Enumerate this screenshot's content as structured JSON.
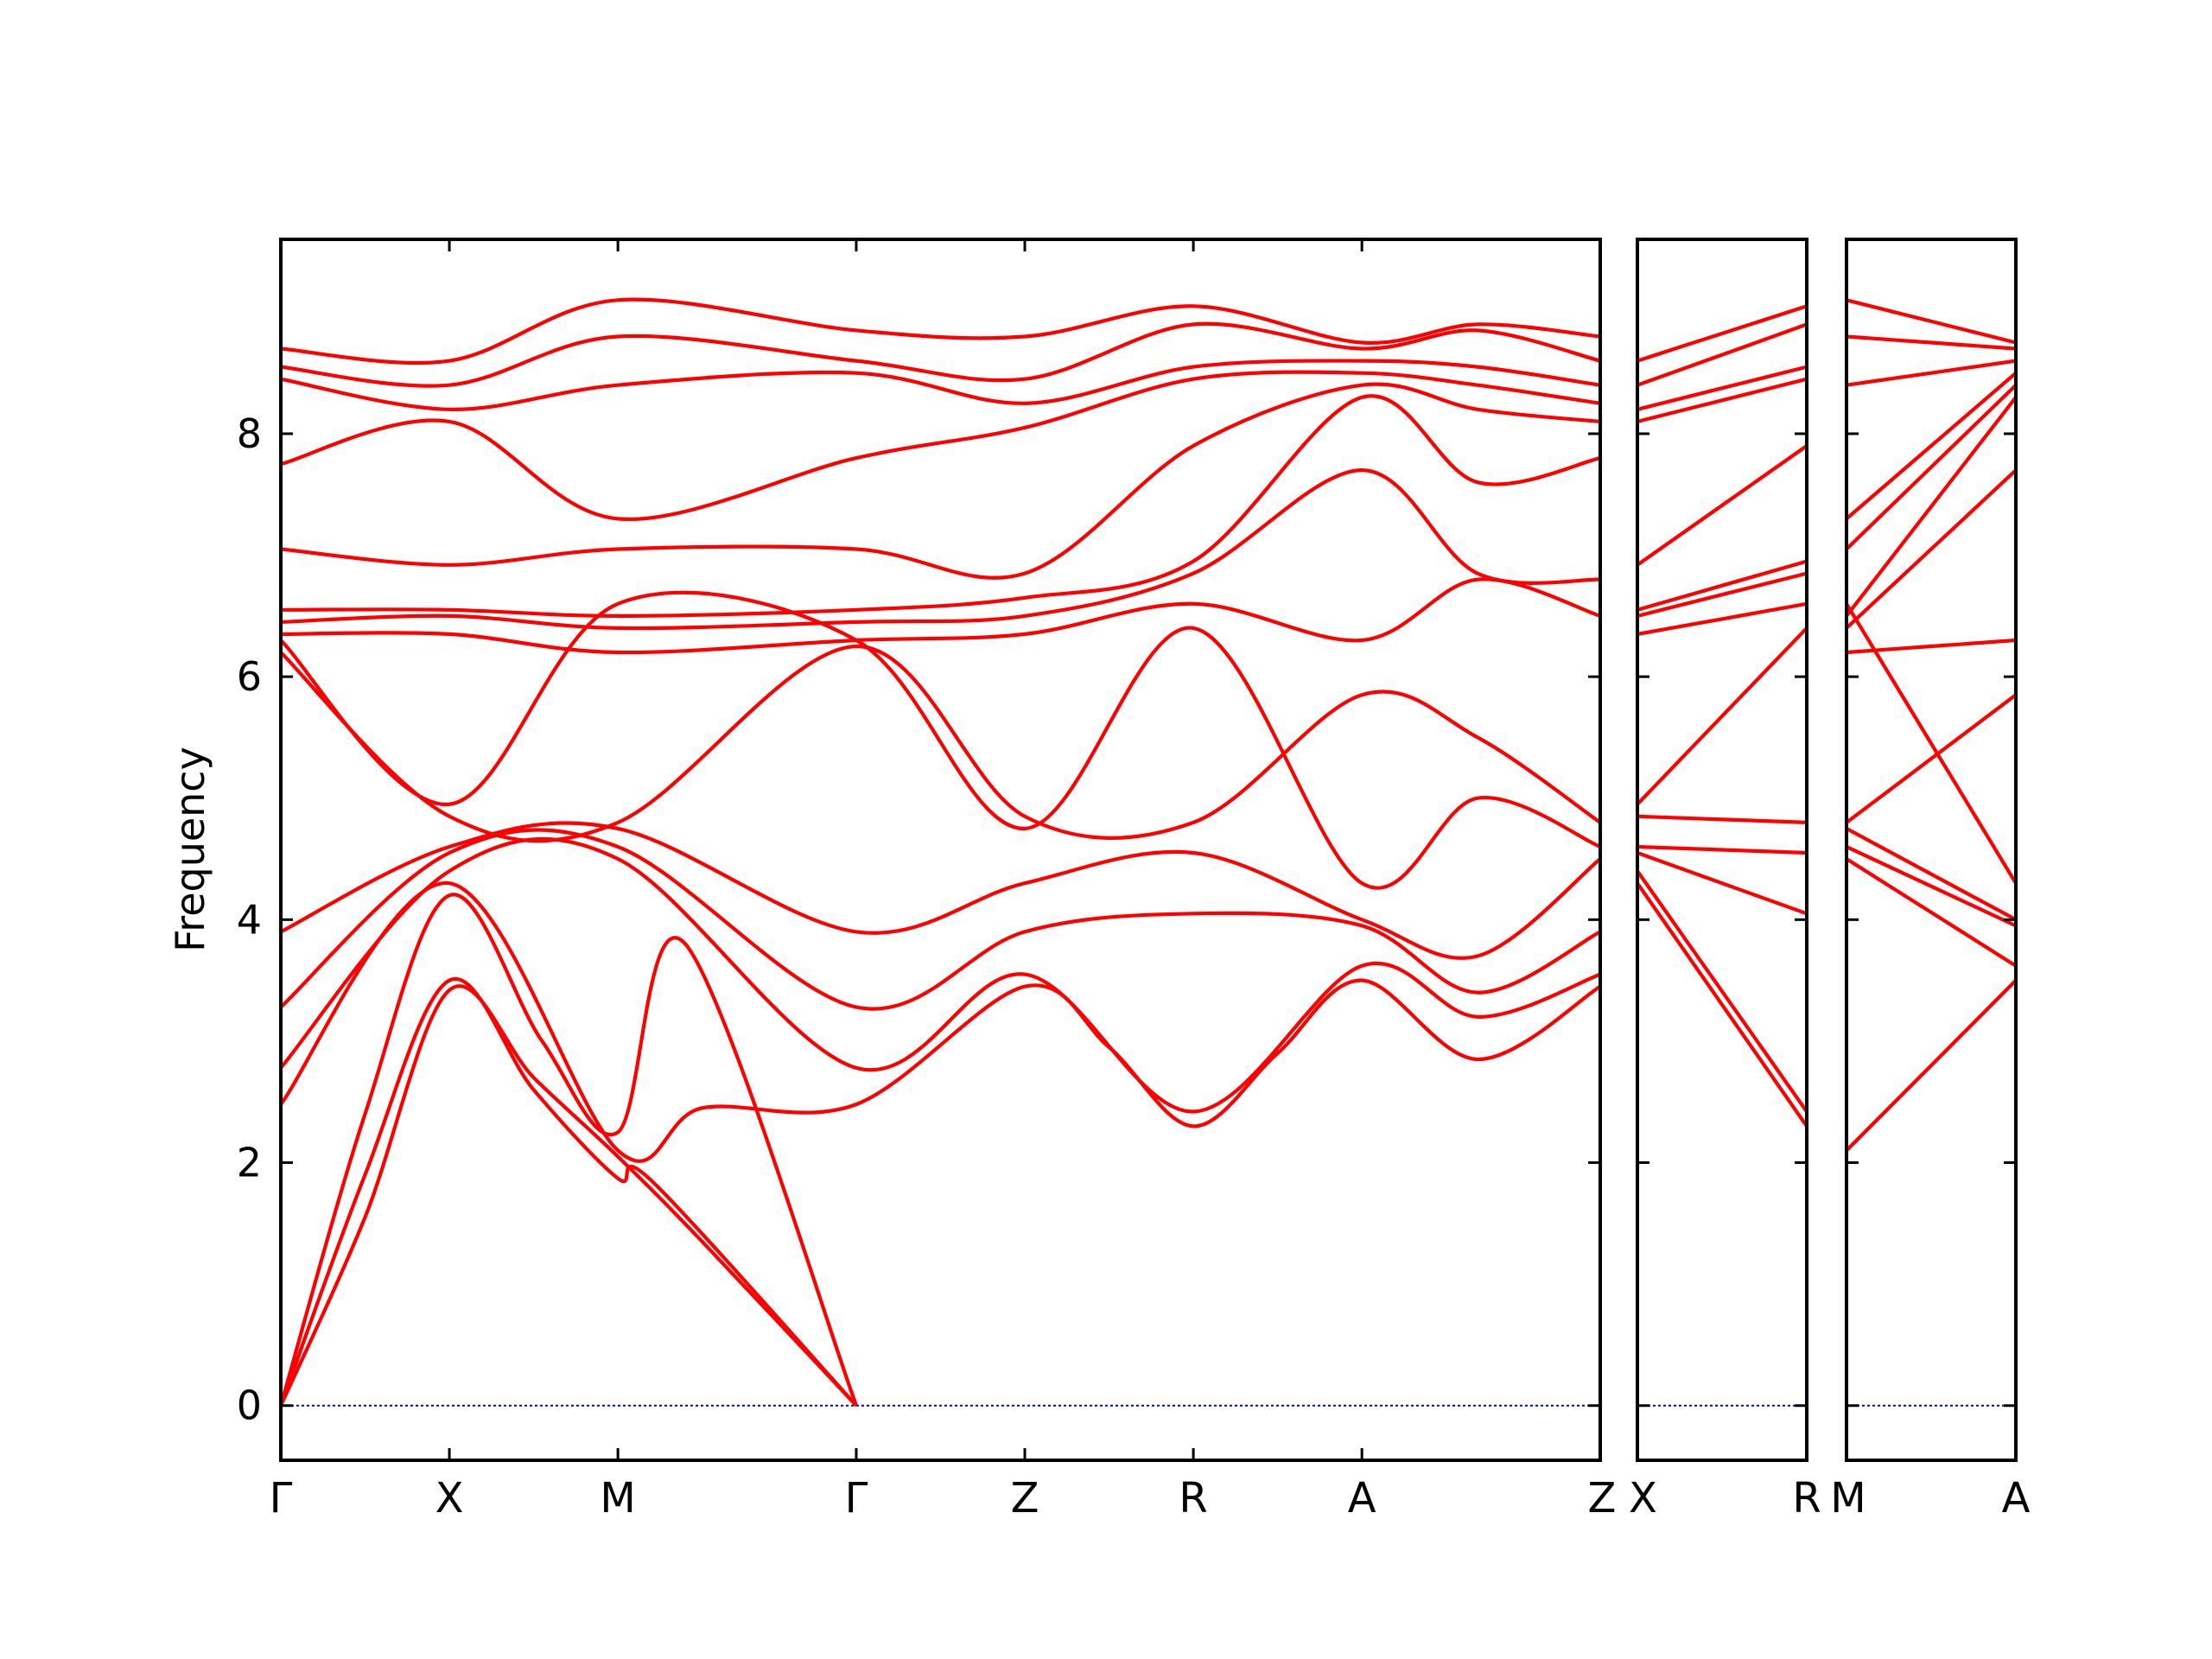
{
  "chart_data": {
    "type": "line",
    "title": "",
    "ylabel": "Frequency",
    "xlabel": "",
    "ylim": [
      -0.45,
      9.6
    ],
    "yticks": [
      0,
      2,
      4,
      6,
      8
    ],
    "grid": false,
    "colors": {
      "band": "#ff0000",
      "zero_line": "#0000cc",
      "axes": "#000000"
    },
    "panels": [
      {
        "labels": [
          "Γ",
          "X",
          "M",
          "Γ",
          "Z",
          "R",
          "A",
          "Z"
        ],
        "x": [
          0,
          1,
          2,
          3.414,
          4.414,
          5.414,
          6.414,
          7.828
        ],
        "xlim": [
          0,
          7.828
        ]
      },
      {
        "labels": [
          "X",
          "R"
        ],
        "x": [
          0,
          1
        ],
        "xlim": [
          0,
          1
        ]
      },
      {
        "labels": [
          "M",
          "A"
        ],
        "x": [
          0,
          1
        ],
        "xlim": [
          0,
          1
        ]
      }
    ],
    "series": [
      {
        "values": [
          [
            0,
            0
          ],
          [
            0.5,
            1.55
          ],
          [
            1,
            3.42
          ],
          [
            1.5,
            2.7
          ],
          [
            2,
            2.05
          ],
          [
            2.5,
            1.35
          ],
          [
            3.414,
            0
          ]
        ]
      },
      {
        "values": [
          [
            0,
            0
          ],
          [
            0.5,
            1.9
          ],
          [
            1,
            3.5
          ],
          [
            1.5,
            2.6
          ],
          [
            2,
            1.87
          ],
          [
            2.2,
            1.85
          ],
          [
            3.414,
            0
          ]
        ]
      },
      {
        "values": [
          [
            0,
            0
          ],
          [
            0.5,
            2.4
          ],
          [
            1,
            4.2
          ],
          [
            1.55,
            3.0
          ],
          [
            2,
            2.25
          ],
          [
            2.4,
            3.8
          ],
          [
            3.414,
            0
          ]
        ]
      },
      {
        "values": [
          [
            0,
            2.48
          ],
          [
            1,
            4.3
          ],
          [
            2,
            2.1
          ],
          [
            2.5,
            2.45
          ],
          [
            3.414,
            2.48
          ],
          [
            4.414,
            3.45
          ],
          [
            4.914,
            2.95
          ],
          [
            5.414,
            2.3
          ],
          [
            5.914,
            2.9
          ],
          [
            6.414,
            3.5
          ],
          [
            7.1,
            2.85
          ],
          [
            7.828,
            3.45
          ]
        ]
      },
      {
        "values": [
          [
            0,
            2.78
          ],
          [
            1,
            4.4
          ],
          [
            2,
            4.5
          ],
          [
            3.414,
            2.78
          ],
          [
            4.414,
            3.55
          ],
          [
            5.414,
            2.42
          ],
          [
            6.414,
            3.62
          ],
          [
            7.1,
            3.2
          ],
          [
            7.828,
            3.55
          ]
        ]
      },
      {
        "values": [
          [
            0,
            3.28
          ],
          [
            1,
            4.55
          ],
          [
            2,
            4.6
          ],
          [
            3.414,
            3.28
          ],
          [
            4.414,
            3.9
          ],
          [
            5.414,
            4.05
          ],
          [
            6.414,
            3.95
          ],
          [
            7.1,
            3.4
          ],
          [
            7.828,
            3.9
          ]
        ]
      },
      {
        "values": [
          [
            0,
            3.9
          ],
          [
            1,
            4.6
          ],
          [
            2,
            4.75
          ],
          [
            3.414,
            3.9
          ],
          [
            4.414,
            4.3
          ],
          [
            5.414,
            4.55
          ],
          [
            6.414,
            4.0
          ],
          [
            7.1,
            3.7
          ],
          [
            7.828,
            4.5
          ]
        ]
      },
      {
        "values": [
          [
            0,
            6.2
          ],
          [
            1,
            4.85
          ],
          [
            2,
            4.8
          ],
          [
            3.414,
            6.25
          ],
          [
            4.414,
            4.85
          ],
          [
            5.414,
            4.8
          ],
          [
            6.414,
            5.85
          ],
          [
            7.1,
            5.5
          ],
          [
            7.828,
            4.8
          ]
        ]
      },
      {
        "values": [
          [
            0,
            6.3
          ],
          [
            1,
            4.95
          ],
          [
            2,
            6.6
          ],
          [
            3.414,
            6.3
          ],
          [
            4.414,
            4.75
          ],
          [
            5.414,
            6.4
          ],
          [
            6.414,
            4.3
          ],
          [
            7.1,
            5.0
          ],
          [
            7.828,
            4.6
          ]
        ]
      },
      {
        "values": [
          [
            0,
            6.35
          ],
          [
            1,
            6.35
          ],
          [
            2,
            6.2
          ],
          [
            3.414,
            6.3
          ],
          [
            4.414,
            6.35
          ],
          [
            5.414,
            6.6
          ],
          [
            6.414,
            6.3
          ],
          [
            7.1,
            6.8
          ],
          [
            7.828,
            6.5
          ]
        ]
      },
      {
        "values": [
          [
            0,
            6.45
          ],
          [
            1,
            6.5
          ],
          [
            2,
            6.4
          ],
          [
            3.414,
            6.45
          ],
          [
            4.414,
            6.5
          ],
          [
            5.414,
            6.85
          ],
          [
            6.414,
            7.7
          ],
          [
            7.1,
            6.85
          ],
          [
            7.828,
            6.8
          ]
        ]
      },
      {
        "values": [
          [
            0,
            6.55
          ],
          [
            1,
            6.55
          ],
          [
            2,
            6.5
          ],
          [
            3.414,
            6.55
          ],
          [
            4.414,
            6.65
          ],
          [
            5.414,
            6.95
          ],
          [
            6.414,
            8.3
          ],
          [
            7.1,
            7.6
          ],
          [
            7.828,
            7.8
          ]
        ]
      },
      {
        "values": [
          [
            0,
            7.05
          ],
          [
            1,
            6.92
          ],
          [
            2,
            7.05
          ],
          [
            3.414,
            7.05
          ],
          [
            4.414,
            6.85
          ],
          [
            5.414,
            7.9
          ],
          [
            6.414,
            8.4
          ],
          [
            7.1,
            8.2
          ],
          [
            7.828,
            8.1
          ]
        ]
      },
      {
        "values": [
          [
            0,
            7.75
          ],
          [
            1,
            8.1
          ],
          [
            2,
            7.3
          ],
          [
            3.414,
            7.8
          ],
          [
            4.414,
            8.05
          ],
          [
            5.414,
            8.45
          ],
          [
            6.414,
            8.5
          ],
          [
            7.1,
            8.4
          ],
          [
            7.828,
            8.25
          ]
        ]
      },
      {
        "values": [
          [
            0,
            8.45
          ],
          [
            1,
            8.2
          ],
          [
            2,
            8.4
          ],
          [
            3.414,
            8.5
          ],
          [
            4.414,
            8.25
          ],
          [
            5.414,
            8.55
          ],
          [
            6.414,
            8.6
          ],
          [
            7.1,
            8.55
          ],
          [
            7.828,
            8.4
          ]
        ]
      },
      {
        "values": [
          [
            0,
            8.55
          ],
          [
            1,
            8.4
          ],
          [
            2,
            8.8
          ],
          [
            3.414,
            8.6
          ],
          [
            4.414,
            8.45
          ],
          [
            5.414,
            8.9
          ],
          [
            6.414,
            8.7
          ],
          [
            7.1,
            8.85
          ],
          [
            7.828,
            8.6
          ]
        ]
      },
      {
        "values": [
          [
            0,
            8.7
          ],
          [
            1,
            8.6
          ],
          [
            2,
            9.1
          ],
          [
            3.414,
            8.85
          ],
          [
            4.414,
            8.8
          ],
          [
            5.414,
            9.05
          ],
          [
            6.414,
            8.75
          ],
          [
            7.1,
            8.9
          ],
          [
            7.828,
            8.8
          ]
        ]
      }
    ]
  }
}
